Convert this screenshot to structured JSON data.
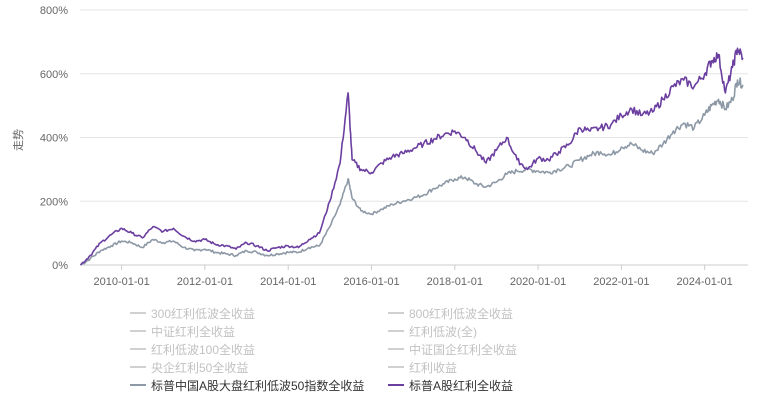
{
  "chart_data": {
    "type": "line",
    "title": "",
    "xlabel": "",
    "ylabel": "走势",
    "ylim": [
      0,
      800
    ],
    "y_ticks": [
      0,
      200,
      400,
      600,
      800
    ],
    "y_tick_labels": [
      "0%",
      "200%",
      "400%",
      "600%",
      "800%"
    ],
    "x_tick_labels": [
      "2010-01-01",
      "2012-01-01",
      "2014-01-01",
      "2016-01-01",
      "2018-01-01",
      "2020-01-01",
      "2022-01-01",
      "2024-01-01"
    ],
    "grid": true,
    "legend_position": "bottom",
    "series_keypoints_note_free": true,
    "x_dates": [
      "2009-01-05",
      "2009-04-01",
      "2009-07-01",
      "2009-10-01",
      "2010-01-01",
      "2010-04-01",
      "2010-07-01",
      "2010-10-01",
      "2011-01-01",
      "2011-04-01",
      "2011-07-01",
      "2011-10-01",
      "2012-01-01",
      "2012-04-01",
      "2012-07-01",
      "2012-10-01",
      "2013-01-01",
      "2013-04-01",
      "2013-07-01",
      "2013-10-01",
      "2014-01-01",
      "2014-04-01",
      "2014-07-01",
      "2014-10-01",
      "2015-01-01",
      "2015-04-01",
      "2015-06-10",
      "2015-07-15",
      "2015-10-01",
      "2016-01-01",
      "2016-04-01",
      "2016-07-01",
      "2016-10-01",
      "2017-01-01",
      "2017-04-01",
      "2017-07-01",
      "2017-10-01",
      "2018-01-01",
      "2018-04-01",
      "2018-07-01",
      "2018-10-01",
      "2019-01-01",
      "2019-04-01",
      "2019-07-01",
      "2019-10-01",
      "2020-01-01",
      "2020-04-01",
      "2020-07-01",
      "2020-10-01",
      "2021-01-01",
      "2021-04-01",
      "2021-07-01",
      "2021-10-01",
      "2022-01-01",
      "2022-04-01",
      "2022-07-01",
      "2022-10-01",
      "2023-01-01",
      "2023-04-01",
      "2023-07-01",
      "2023-10-01",
      "2024-01-01",
      "2024-03-01",
      "2024-05-01",
      "2024-07-01",
      "2024-09-01",
      "2024-10-15",
      "2024-12-01"
    ],
    "series": [
      {
        "name": "300红利低波全收益",
        "visible": false,
        "color": "#c8c8c8",
        "values": []
      },
      {
        "name": "800红利低波全收益",
        "visible": false,
        "color": "#c8c8c8",
        "values": []
      },
      {
        "name": "中证红利全收益",
        "visible": false,
        "color": "#c8c8c8",
        "values": []
      },
      {
        "name": "红利低波(全)",
        "visible": false,
        "color": "#c8c8c8",
        "values": []
      },
      {
        "name": "红利低波100全收益",
        "visible": false,
        "color": "#c8c8c8",
        "values": []
      },
      {
        "name": "中证国企红利全收益",
        "visible": false,
        "color": "#c8c8c8",
        "values": []
      },
      {
        "name": "央企红利50全收益",
        "visible": false,
        "color": "#c8c8c8",
        "values": []
      },
      {
        "name": "红利收益",
        "visible": false,
        "color": "#c8c8c8",
        "values": []
      },
      {
        "name": "标普中国A股大盘红利低波50指数全收益",
        "visible": true,
        "color": "#8d99a6",
        "values": [
          0,
          20,
          45,
          60,
          75,
          70,
          55,
          80,
          70,
          75,
          55,
          45,
          50,
          40,
          35,
          30,
          45,
          40,
          30,
          35,
          40,
          40,
          55,
          60,
          120,
          190,
          270,
          210,
          170,
          160,
          175,
          190,
          200,
          210,
          220,
          240,
          255,
          270,
          275,
          255,
          245,
          260,
          285,
          295,
          300,
          295,
          290,
          300,
          310,
          330,
          345,
          355,
          345,
          370,
          380,
          360,
          350,
          380,
          420,
          445,
          430,
          470,
          500,
          520,
          490,
          520,
          580,
          565
        ]
      },
      {
        "name": "标普A股红利全收益",
        "visible": true,
        "color": "#6b3fa0",
        "values": [
          0,
          30,
          70,
          95,
          115,
          100,
          85,
          120,
          105,
          115,
          90,
          75,
          80,
          65,
          60,
          50,
          70,
          60,
          45,
          55,
          60,
          55,
          80,
          100,
          200,
          320,
          540,
          330,
          300,
          290,
          320,
          340,
          350,
          365,
          380,
          395,
          410,
          420,
          400,
          360,
          320,
          360,
          400,
          330,
          300,
          335,
          330,
          355,
          380,
          430,
          420,
          430,
          440,
          470,
          490,
          470,
          480,
          520,
          560,
          580,
          560,
          600,
          640,
          660,
          540,
          620,
          680,
          650
        ]
      }
    ]
  }
}
